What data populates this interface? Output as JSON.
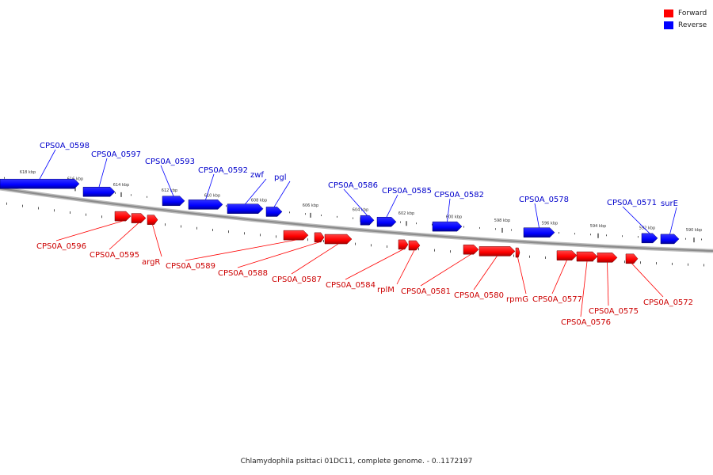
{
  "legend": {
    "forward_label": "Forward",
    "reverse_label": "Reverse",
    "forward_color": "#ff0000",
    "reverse_color": "#0000ff"
  },
  "caption": "Chlamydophila psittaci 01DC11, complete genome. - 0..1172197",
  "colors": {
    "forward": "#ff0000",
    "reverse": "#0000ff",
    "backbone": "#8a8a8a",
    "forward_label": "#cc0000",
    "reverse_label": "#0000cc"
  },
  "ticks": [
    "618 kbp",
    "616 kbp",
    "614 kbp",
    "612 kbp",
    "610 kbp",
    "608 kbp",
    "606 kbp",
    "604 kbp",
    "602 kbp",
    "600 kbp",
    "598 kbp",
    "596 kbp",
    "594 kbp",
    "592 kbp",
    "590 kbp"
  ],
  "reverse_genes": [
    "CPS0A_0598",
    "CPS0A_0597",
    "CPS0A_0593",
    "CPS0A_0592",
    "zwf",
    "pgl",
    "CPS0A_0586",
    "CPS0A_0585",
    "CPS0A_0582",
    "CPS0A_0578",
    "CPS0A_0571",
    "surE"
  ],
  "forward_genes": [
    "CPS0A_0596",
    "CPS0A_0595",
    "argR",
    "CPS0A_0589",
    "CPS0A_0588",
    "CPS0A_0587",
    "CPS0A_0584",
    "rplM",
    "CPS0A_0581",
    "CPS0A_0580",
    "rpmG",
    "CPS0A_0577",
    "CPS0A_0576",
    "CPS0A_0575",
    "CPS0A_0572"
  ]
}
